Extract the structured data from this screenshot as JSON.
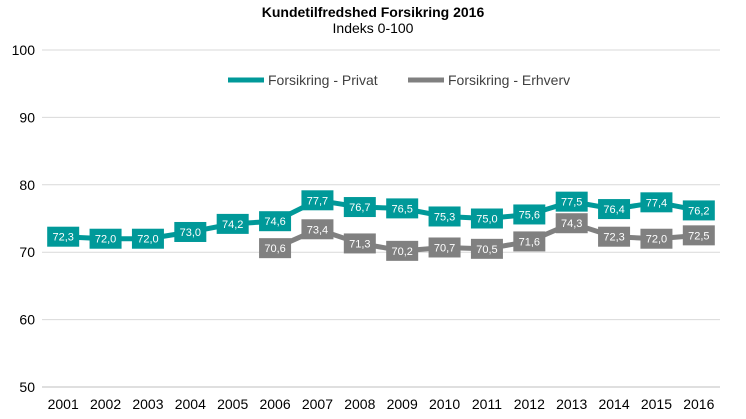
{
  "chart_data": {
    "type": "line",
    "title": "Kundetilfredshed Forsikring 2016",
    "subtitle": "Indeks 0-100",
    "xlabel": "",
    "ylabel": "",
    "ylim": [
      50,
      100
    ],
    "yticks": [
      "50",
      "60",
      "70",
      "80",
      "90",
      "100"
    ],
    "grid": true,
    "legend_position": "top-center",
    "categories": [
      "2001",
      "2002",
      "2003",
      "2004",
      "2005",
      "2006",
      "2007",
      "2008",
      "2009",
      "2010",
      "2011",
      "2012",
      "2013",
      "2014",
      "2015",
      "2016"
    ],
    "series": [
      {
        "name": "Forsikring - Privat",
        "color": "#009999",
        "values": [
          72.3,
          72.0,
          72.0,
          73.0,
          74.2,
          74.6,
          77.7,
          76.7,
          76.5,
          75.3,
          75.0,
          75.6,
          77.5,
          76.4,
          77.4,
          76.2
        ],
        "labels": [
          "72,3",
          "72,0",
          "72,0",
          "73,0",
          "74,2",
          "74,6",
          "77,7",
          "76,7",
          "76,5",
          "75,3",
          "75,0",
          "75,6",
          "77,5",
          "76,4",
          "77,4",
          "76,2"
        ]
      },
      {
        "name": "Forsikring - Erhverv",
        "color": "#808080",
        "values": [
          null,
          null,
          null,
          null,
          null,
          70.6,
          73.4,
          71.3,
          70.2,
          70.7,
          70.5,
          71.6,
          74.3,
          72.3,
          72.0,
          72.5
        ],
        "labels": [
          null,
          null,
          null,
          null,
          null,
          "70,6",
          "73,4",
          "71,3",
          "70,2",
          "70,7",
          "70,5",
          "71,6",
          "74,3",
          "72,3",
          "72,0",
          "72,5"
        ]
      }
    ]
  }
}
